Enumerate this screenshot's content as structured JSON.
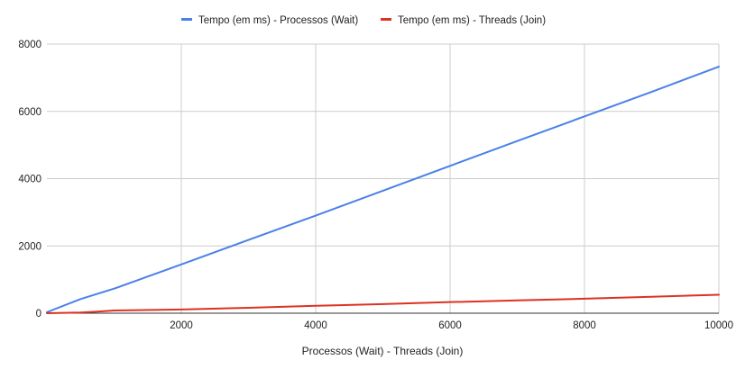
{
  "chart_data": {
    "type": "line",
    "title": "",
    "xlabel": "Processos (Wait) - Threads (Join)",
    "ylabel": "",
    "xlim": [
      0,
      10000
    ],
    "ylim": [
      0,
      8000
    ],
    "x_ticks": [
      2000,
      4000,
      6000,
      8000,
      10000
    ],
    "y_ticks": [
      0,
      2000,
      4000,
      6000,
      8000
    ],
    "grid": true,
    "legend_position": "top",
    "series": [
      {
        "name": "Tempo (em ms) - Processos (Wait)",
        "color": "#4a80e8",
        "x": [
          0,
          500,
          1000,
          2000,
          3000,
          4000,
          5000,
          6000,
          7000,
          8000,
          9000,
          10000
        ],
        "y": [
          30,
          420,
          730,
          1450,
          2180,
          2900,
          3640,
          4380,
          5120,
          5850,
          6580,
          7330
        ]
      },
      {
        "name": "Tempo (em ms) - Threads (Join)",
        "color": "#dc3224",
        "x": [
          0,
          500,
          700,
          1000,
          2000,
          3000,
          4000,
          5000,
          6000,
          7000,
          8000,
          9000,
          10000
        ],
        "y": [
          0,
          20,
          40,
          80,
          110,
          160,
          220,
          270,
          330,
          380,
          430,
          490,
          550
        ]
      }
    ]
  }
}
